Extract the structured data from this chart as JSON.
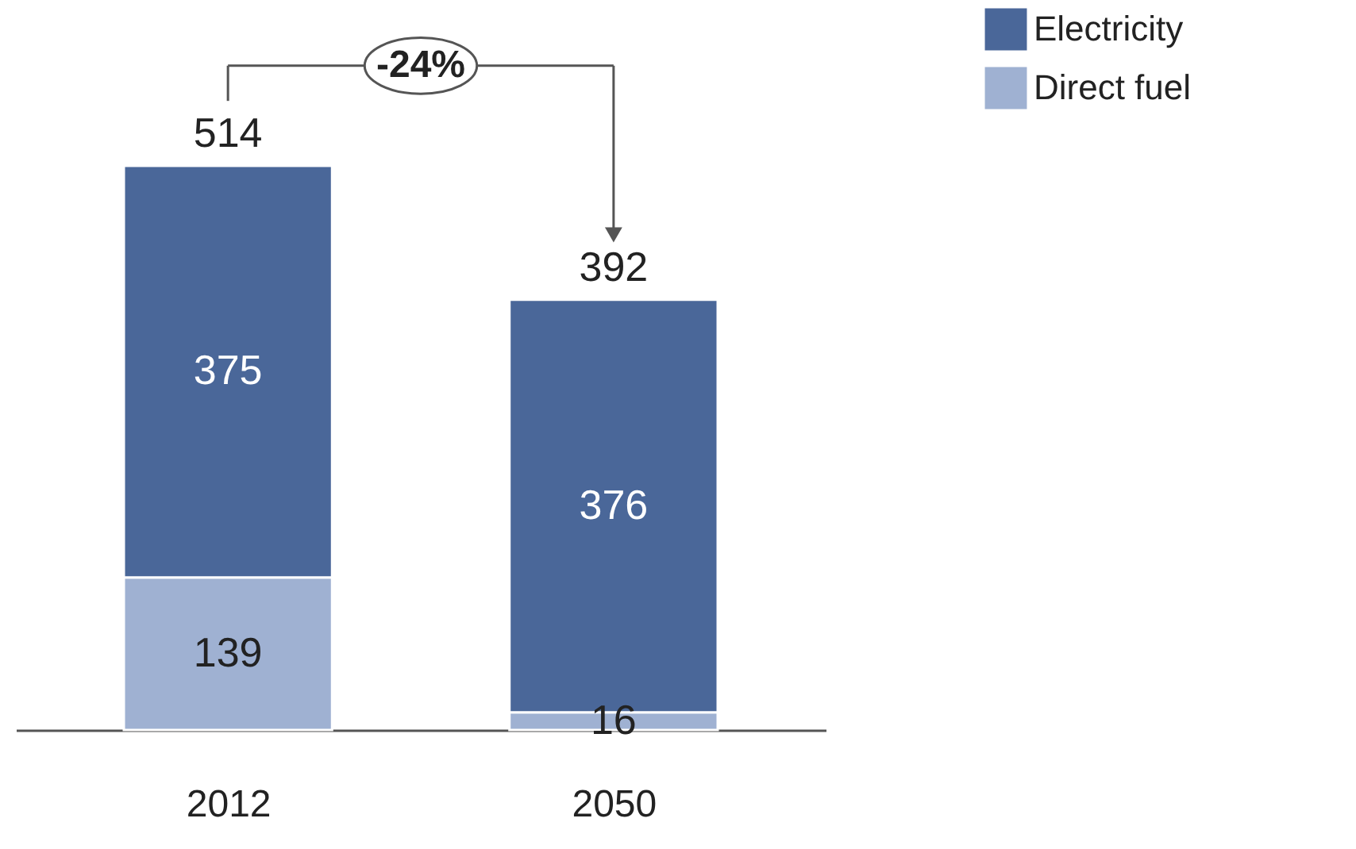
{
  "chart_data": {
    "type": "bar",
    "stacked": true,
    "categories": [
      "2012",
      "2050"
    ],
    "series": [
      {
        "name": "Direct fuel",
        "color": "#9fb1d2",
        "values": [
          139,
          16
        ]
      },
      {
        "name": "Electricity",
        "color": "#4a6799",
        "values": [
          375,
          376
        ]
      }
    ],
    "data_labels": true,
    "totals": [
      "514",
      "392"
    ],
    "annotations": [
      "-24%"
    ],
    "legend": "right",
    "grid": false
  }
}
